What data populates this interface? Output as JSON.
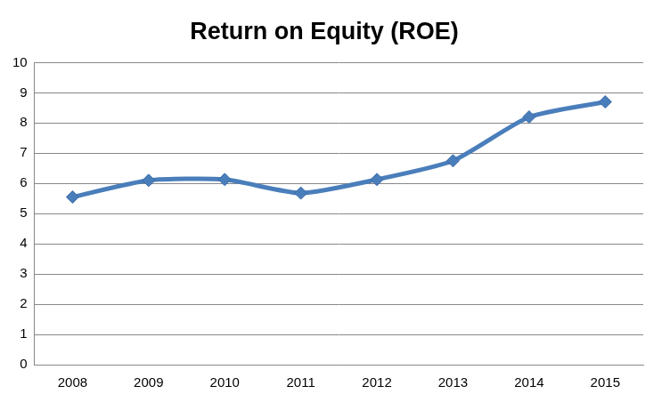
{
  "chart_data": {
    "type": "line",
    "title": "Return on Equity (ROE)",
    "categories": [
      "2008",
      "2009",
      "2010",
      "2011",
      "2012",
      "2013",
      "2014",
      "2015"
    ],
    "values": [
      5.55,
      6.1,
      6.13,
      5.68,
      6.13,
      6.75,
      8.2,
      8.7
    ],
    "color": "#4a7ebb",
    "marker": "diamond",
    "line_style": "solid",
    "ylim": [
      0,
      10
    ],
    "yticks": [
      0,
      1,
      2,
      3,
      4,
      5,
      6,
      7,
      8,
      9,
      10
    ],
    "grid": true
  }
}
